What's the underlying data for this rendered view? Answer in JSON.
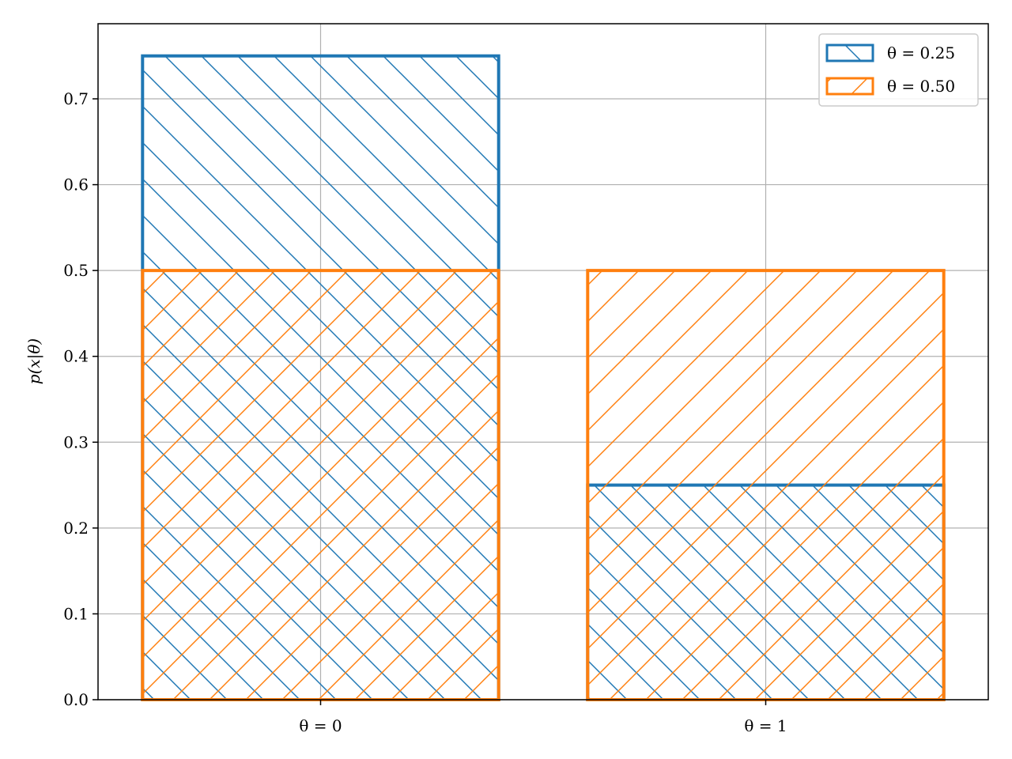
{
  "chart_data": {
    "type": "bar",
    "title": "",
    "xlabel": "",
    "ylabel": "p(x|θ)",
    "categories": [
      "θ = 0",
      "θ = 1"
    ],
    "series": [
      {
        "name": "θ = 0.25",
        "values": [
          0.75,
          0.25
        ],
        "color": "#1f77b4",
        "hatch": "backslash"
      },
      {
        "name": "θ = 0.50",
        "values": [
          0.5,
          0.5
        ],
        "color": "#ff7f0e",
        "hatch": "slash"
      }
    ],
    "ylim": [
      0,
      0.7875
    ],
    "yticks": [
      "0.0",
      "0.1",
      "0.2",
      "0.3",
      "0.4",
      "0.5",
      "0.6",
      "0.7"
    ],
    "grid": true,
    "legend_position": "top-right",
    "bar_style": "overlaid-hatched-unfilled"
  }
}
